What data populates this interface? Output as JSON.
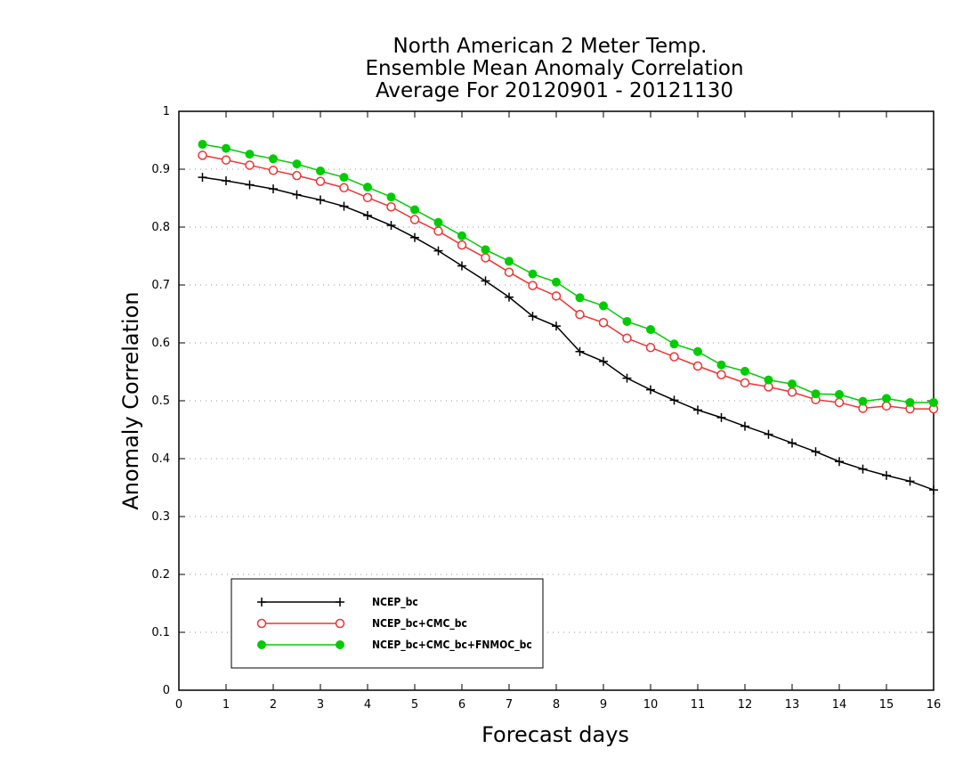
{
  "chart_data": {
    "type": "line",
    "title": [
      "North American 2 Meter Temp.",
      "Ensemble Mean Anomaly Correlation",
      "Average For 20120901 - 20121130"
    ],
    "xlabel": "Forecast days",
    "ylabel": "Anomaly Correlation",
    "xlim": [
      0,
      16
    ],
    "ylim": [
      0,
      1
    ],
    "xticks": [
      0,
      1,
      2,
      3,
      4,
      5,
      6,
      7,
      8,
      9,
      10,
      11,
      12,
      13,
      14,
      15,
      16
    ],
    "xtick_labels": [
      "0",
      "1",
      "2",
      "3",
      "4",
      "5",
      "6",
      "7",
      "8",
      "9",
      "10",
      "11",
      "12",
      "13",
      "14",
      "15",
      "16"
    ],
    "yticks": [
      0,
      0.1,
      0.2,
      0.3,
      0.4,
      0.5,
      0.6,
      0.7,
      0.8,
      0.9,
      1
    ],
    "ytick_labels": [
      "0",
      "0.1",
      "0.2",
      "0.3",
      "0.4",
      "0.5",
      "0.6",
      "0.7",
      "0.8",
      "0.9",
      "1"
    ],
    "grid": "horizontal dotted",
    "legend_position": "bottom-left",
    "x": [
      0.5,
      1,
      1.5,
      2,
      2.5,
      3,
      3.5,
      4,
      4.5,
      5,
      5.5,
      6,
      6.5,
      7,
      7.5,
      8,
      8.5,
      9,
      9.5,
      10,
      10.5,
      11,
      11.5,
      12,
      12.5,
      13,
      13.5,
      14,
      14.5,
      15,
      15.5,
      16
    ],
    "series": [
      {
        "name": "NCEP_bc",
        "color": "#000000",
        "marker": "plus",
        "values": [
          0.886,
          0.88,
          0.873,
          0.866,
          0.856,
          0.847,
          0.836,
          0.82,
          0.803,
          0.782,
          0.759,
          0.733,
          0.707,
          0.679,
          0.646,
          0.629,
          0.585,
          0.568,
          0.539,
          0.519,
          0.501,
          0.484,
          0.471,
          0.456,
          0.442,
          0.427,
          0.412,
          0.395,
          0.382,
          0.371,
          0.361,
          0.346
        ]
      },
      {
        "name": "NCEP_bc+CMC_bc",
        "color": "#ee3333",
        "marker": "open-circle",
        "values": [
          0.924,
          0.916,
          0.907,
          0.898,
          0.889,
          0.879,
          0.868,
          0.851,
          0.835,
          0.813,
          0.793,
          0.769,
          0.747,
          0.722,
          0.699,
          0.681,
          0.649,
          0.635,
          0.608,
          0.592,
          0.576,
          0.56,
          0.545,
          0.531,
          0.524,
          0.515,
          0.502,
          0.497,
          0.487,
          0.491,
          0.486,
          0.486
        ]
      },
      {
        "name": "NCEP_bc+CMC_bc+FNMOC_bc",
        "color": "#00cc00",
        "marker": "filled-circle",
        "values": [
          0.943,
          0.936,
          0.926,
          0.918,
          0.909,
          0.897,
          0.886,
          0.869,
          0.852,
          0.83,
          0.808,
          0.785,
          0.761,
          0.741,
          0.719,
          0.705,
          0.678,
          0.664,
          0.637,
          0.623,
          0.598,
          0.585,
          0.562,
          0.551,
          0.536,
          0.529,
          0.512,
          0.511,
          0.499,
          0.504,
          0.497,
          0.497
        ]
      }
    ]
  }
}
